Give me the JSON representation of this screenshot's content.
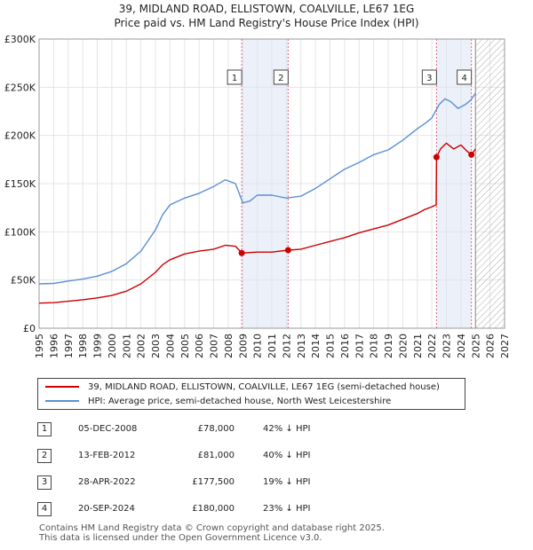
{
  "title_line1": "39, MIDLAND ROAD, ELLISTOWN, COALVILLE, LE67 1EG",
  "title_line2": "Price paid vs. HM Land Registry's House Price Index (HPI)",
  "colors": {
    "property": "#cc0000",
    "hpi": "#5b8fd4",
    "marker_bg": "#dde6f5",
    "sale_line": "#dd6677",
    "hatch": "#aaaaaa"
  },
  "legend": {
    "property_label": "39, MIDLAND ROAD, ELLISTOWN, COALVILLE, LE67 1EG (semi-detached house)",
    "hpi_label": "HPI: Average price, semi-detached house, North West Leicestershire"
  },
  "sales": [
    {
      "num": "1",
      "date": "05-DEC-2008",
      "price": "£78,000",
      "hpi_diff": "42% ↓ HPI",
      "x": 2008.93,
      "y": 78000
    },
    {
      "num": "2",
      "date": "13-FEB-2012",
      "price": "£81,000",
      "hpi_diff": "40% ↓ HPI",
      "x": 2012.12,
      "y": 81000
    },
    {
      "num": "3",
      "date": "28-APR-2022",
      "price": "£177,500",
      "hpi_diff": "19% ↓ HPI",
      "x": 2022.32,
      "y": 177500
    },
    {
      "num": "4",
      "date": "20-SEP-2024",
      "price": "£180,000",
      "hpi_diff": "23% ↓ HPI",
      "x": 2024.72,
      "y": 180000
    }
  ],
  "footer_line1": "Contains HM Land Registry data © Crown copyright and database right 2025.",
  "footer_line2": "This data is licensed under the Open Government Licence v3.0.",
  "chart_data": {
    "type": "line",
    "title": "39, MIDLAND ROAD, ELLISTOWN, COALVILLE, LE67 1EG — Price paid vs. HM Land Registry's House Price Index (HPI)",
    "xlabel": "",
    "ylabel": "",
    "xlim": [
      1995,
      2027
    ],
    "ylim": [
      0,
      300000
    ],
    "x_ticks": [
      1995,
      1996,
      1997,
      1998,
      1999,
      2000,
      2001,
      2002,
      2003,
      2004,
      2005,
      2006,
      2007,
      2008,
      2009,
      2010,
      2011,
      2012,
      2013,
      2014,
      2015,
      2016,
      2017,
      2018,
      2019,
      2020,
      2021,
      2022,
      2023,
      2024,
      2025,
      2026,
      2027
    ],
    "y_ticks": [
      {
        "value": 0,
        "label": "£0"
      },
      {
        "value": 50000,
        "label": "£50K"
      },
      {
        "value": 100000,
        "label": "£100K"
      },
      {
        "value": 150000,
        "label": "£150K"
      },
      {
        "value": 200000,
        "label": "£200K"
      },
      {
        "value": 250000,
        "label": "£250K"
      },
      {
        "value": 300000,
        "label": "£300K"
      }
    ],
    "grid": true,
    "forecast_from": 2025.0,
    "series": [
      {
        "name": "HPI: Average price, semi-detached house, North West Leicestershire",
        "x": [
          1995,
          1996,
          1997,
          1998,
          1999,
          2000,
          2001,
          2002,
          2003,
          2003.5,
          2004,
          2005,
          2006,
          2007,
          2007.8,
          2008.5,
          2009.0,
          2009.5,
          2010,
          2011,
          2012,
          2013,
          2014,
          2015,
          2016,
          2017,
          2018,
          2019,
          2020,
          2021,
          2021.5,
          2022,
          2022.5,
          2022.9,
          2023.3,
          2023.8,
          2024.3,
          2024.7,
          2025.0
        ],
        "values": [
          46000,
          46500,
          49000,
          51000,
          54000,
          59000,
          67000,
          80000,
          102000,
          118000,
          128000,
          135000,
          140000,
          147000,
          154000,
          150000,
          130000,
          132000,
          138000,
          138000,
          135000,
          137000,
          145000,
          155000,
          165000,
          172000,
          180000,
          185000,
          195000,
          207000,
          212000,
          218000,
          232000,
          238000,
          235000,
          228000,
          232000,
          237000,
          244000
        ]
      },
      {
        "name": "39, MIDLAND ROAD, ELLISTOWN, COALVILLE, LE67 1EG (semi-detached house)",
        "x": [
          1995,
          1996,
          1997,
          1998,
          1999,
          2000,
          2001,
          2002,
          2003,
          2003.5,
          2004,
          2005,
          2006,
          2007,
          2007.8,
          2008.5,
          2008.93,
          2009.5,
          2010,
          2011,
          2012.12,
          2013,
          2014,
          2015,
          2016,
          2017,
          2018,
          2019,
          2020,
          2021,
          2021.5,
          2022.0,
          2022.3,
          2022.32,
          2022.6,
          2023.0,
          2023.5,
          2024.0,
          2024.4,
          2024.72,
          2025.0
        ],
        "values": [
          26000,
          26500,
          28000,
          29500,
          31500,
          34000,
          38500,
          46000,
          58000,
          66000,
          71000,
          77000,
          80000,
          82000,
          86000,
          85000,
          78000,
          78500,
          79000,
          79000,
          81000,
          82000,
          86000,
          90000,
          94000,
          99000,
          103000,
          107000,
          113000,
          119000,
          123000,
          126000,
          128000,
          177500,
          186000,
          192000,
          186000,
          190000,
          184000,
          180000,
          186000
        ]
      }
    ]
  }
}
